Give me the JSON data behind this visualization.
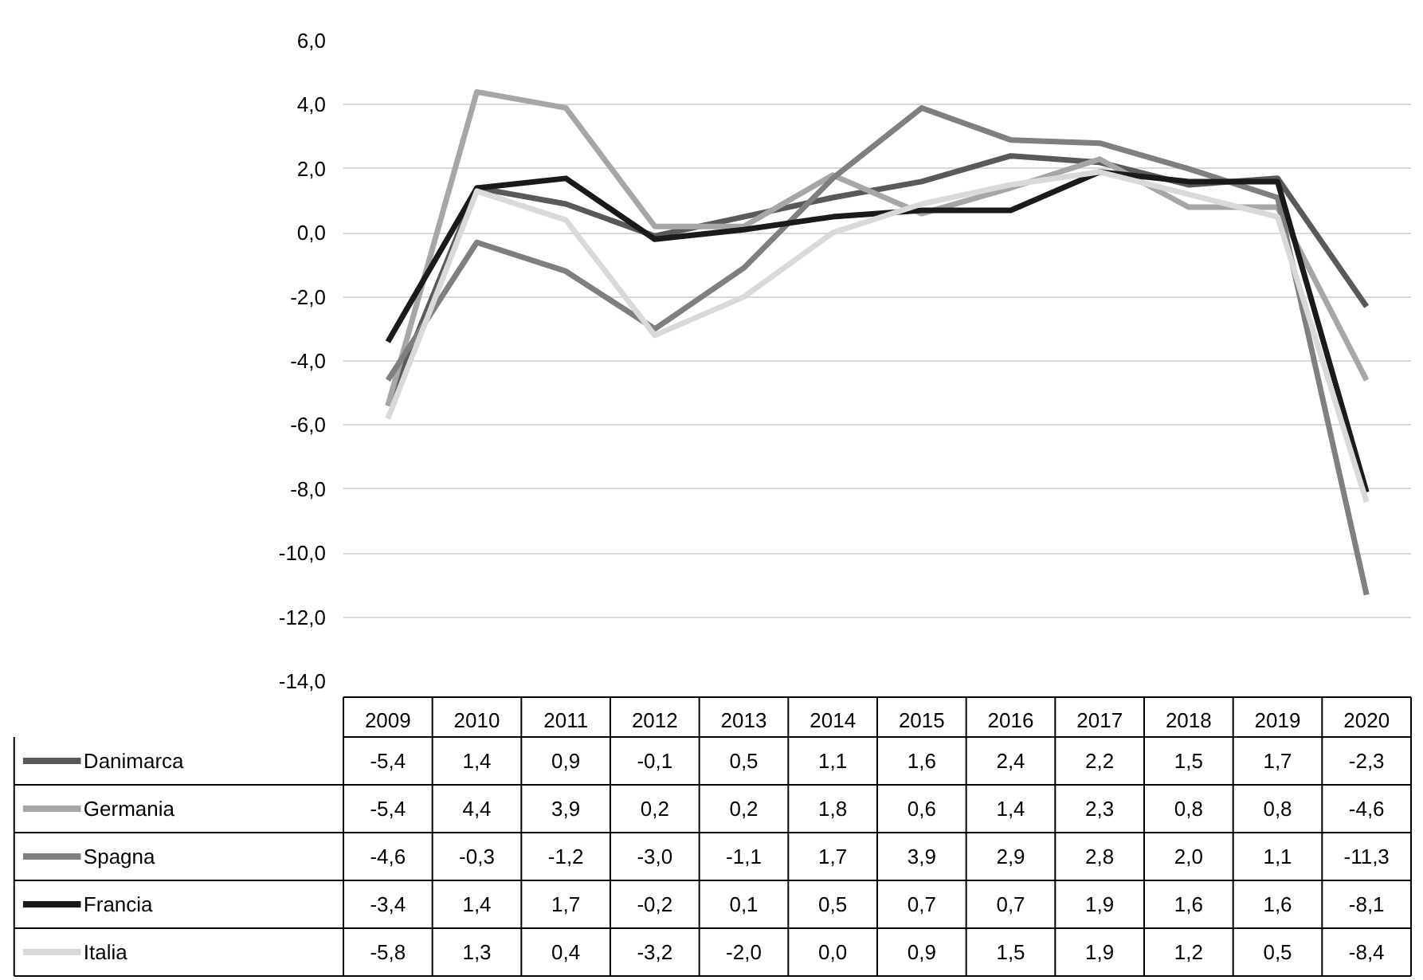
{
  "chart_data": {
    "type": "line",
    "categories": [
      "2009",
      "2010",
      "2011",
      "2012",
      "2013",
      "2014",
      "2015",
      "2016",
      "2017",
      "2018",
      "2019",
      "2020"
    ],
    "ylim": [
      -14,
      6
    ],
    "yticks": [
      {
        "value": -14,
        "label": "-14,0"
      },
      {
        "value": -12,
        "label": "-12,0"
      },
      {
        "value": -10,
        "label": "-10,0"
      },
      {
        "value": -8,
        "label": "-8,0"
      },
      {
        "value": -6,
        "label": "-6,0"
      },
      {
        "value": -4,
        "label": "-4,0"
      },
      {
        "value": -2,
        "label": "-2,0"
      },
      {
        "value": 0,
        "label": "0,0"
      },
      {
        "value": 2,
        "label": "2,0"
      },
      {
        "value": 4,
        "label": "4,0"
      },
      {
        "value": 6,
        "label": "6,0"
      }
    ],
    "grid": "y",
    "legend": "bottom",
    "line_style": "solid",
    "marker": "none",
    "series": [
      {
        "name": "Danimarca",
        "color": "#595959",
        "values": [
          -5.4,
          1.4,
          0.9,
          -0.1,
          0.5,
          1.1,
          1.6,
          2.4,
          2.2,
          1.5,
          1.7,
          -2.3
        ],
        "value_labels": [
          "-5,4",
          "1,4",
          "0,9",
          "-0,1",
          "0,5",
          "1,1",
          "1,6",
          "2,4",
          "2,2",
          "1,5",
          "1,7",
          "-2,3"
        ]
      },
      {
        "name": "Germania",
        "color": "#a6a6a6",
        "values": [
          -5.4,
          4.4,
          3.9,
          0.2,
          0.2,
          1.8,
          0.6,
          1.4,
          2.3,
          0.8,
          0.8,
          -4.6
        ],
        "value_labels": [
          "-5,4",
          "4,4",
          "3,9",
          "0,2",
          "0,2",
          "1,8",
          "0,6",
          "1,4",
          "2,3",
          "0,8",
          "0,8",
          "-4,6"
        ]
      },
      {
        "name": "Spagna",
        "color": "#7f7f7f",
        "values": [
          -4.6,
          -0.3,
          -1.2,
          -3.0,
          -1.1,
          1.7,
          3.9,
          2.9,
          2.8,
          2.0,
          1.1,
          -11.3
        ],
        "value_labels": [
          "-4,6",
          "-0,3",
          "-1,2",
          "-3,0",
          "-1,1",
          "1,7",
          "3,9",
          "2,9",
          "2,8",
          "2,0",
          "1,1",
          "-11,3"
        ]
      },
      {
        "name": "Francia",
        "color": "#1a1a1a",
        "values": [
          -3.4,
          1.4,
          1.7,
          -0.2,
          0.1,
          0.5,
          0.7,
          0.7,
          1.9,
          1.6,
          1.6,
          -8.1
        ],
        "value_labels": [
          "-3,4",
          "1,4",
          "1,7",
          "-0,2",
          "0,1",
          "0,5",
          "0,7",
          "0,7",
          "1,9",
          "1,6",
          "1,6",
          "-8,1"
        ]
      },
      {
        "name": "Italia",
        "color": "#d9d9d9",
        "values": [
          -5.8,
          1.3,
          0.4,
          -3.2,
          -2.0,
          0.0,
          0.9,
          1.5,
          1.9,
          1.2,
          0.5,
          -8.4
        ],
        "value_labels": [
          "-5,8",
          "1,3",
          "0,4",
          "-3,2",
          "-2,0",
          "0,0",
          "0,9",
          "1,5",
          "1,9",
          "1,2",
          "0,5",
          "-8,4"
        ]
      }
    ]
  }
}
